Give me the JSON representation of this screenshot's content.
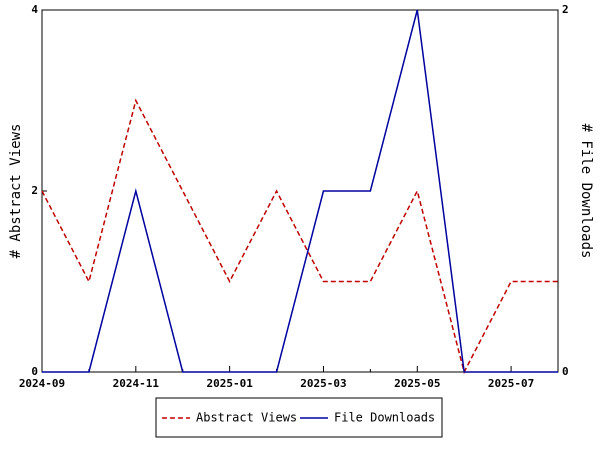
{
  "chart_data": {
    "type": "line",
    "categories": [
      "2024-09",
      null,
      "2024-11",
      null,
      "2025-01",
      null,
      "2025-03",
      null,
      "2025-05",
      null,
      "2025-07",
      null
    ],
    "series": [
      {
        "name": "Abstract Views",
        "color": "#c00000",
        "dashed": true,
        "axis": "y",
        "values": [
          2,
          1,
          3,
          2,
          1,
          2,
          1,
          1,
          2,
          0,
          1,
          1
        ]
      },
      {
        "name": "File Downloads",
        "color": "#0000a0",
        "dashed": false,
        "axis": "y2",
        "values": [
          0,
          0,
          1,
          0,
          0,
          0,
          1,
          1,
          2,
          0,
          0,
          0
        ]
      }
    ],
    "ylabel": "# Abstract Views",
    "y2label": "# File Downloads",
    "ylim": [
      0,
      4
    ],
    "yticks": [
      0,
      2,
      4
    ],
    "y2lim": [
      0,
      2
    ],
    "y2ticks": [
      0,
      2
    ],
    "legend": "bottom"
  }
}
